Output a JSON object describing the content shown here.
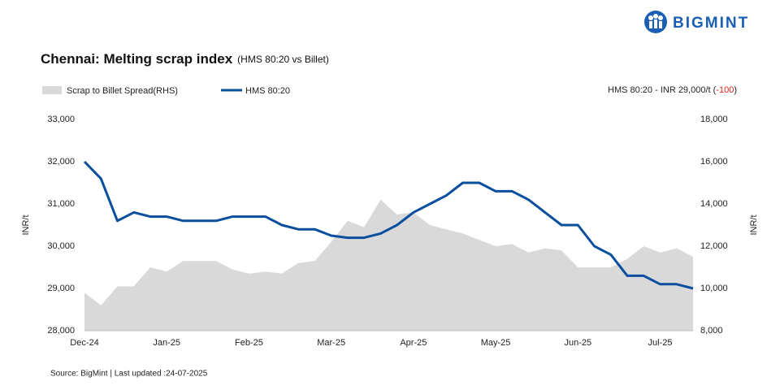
{
  "brand": "BIGMINT",
  "chart_data": {
    "type": "line-area",
    "title": "Chennai: Melting scrap index",
    "subtitle": "(HMS 80:20 vs Billet)",
    "annotation_prefix": "HMS 80:20 - INR 29,000/t (",
    "annotation_change": "-100",
    "annotation_suffix": ")",
    "source": "Source: BigMint | Last updated :24-07-2025",
    "ylabel": "INR/t",
    "y2label": "INR/t",
    "categories": [
      "Dec-24",
      null,
      null,
      null,
      null,
      "Jan-25",
      null,
      null,
      null,
      null,
      "Feb-25",
      null,
      null,
      null,
      null,
      "Mar-25",
      null,
      null,
      null,
      null,
      "Apr-25",
      null,
      null,
      null,
      null,
      "May-25",
      null,
      null,
      null,
      null,
      "Jun-25",
      null,
      null,
      null,
      null,
      "Jul-25",
      null,
      null
    ],
    "series": [
      {
        "name": "Scrap to Billet Spread(RHS)",
        "color": "#d9d9d9",
        "style": "area",
        "axis": "y2",
        "values": [
          9800,
          9200,
          10100,
          10100,
          11000,
          10800,
          11300,
          11300,
          11300,
          10900,
          10700,
          10800,
          10700,
          11200,
          11300,
          12200,
          13200,
          12900,
          14200,
          13500,
          13600,
          13000,
          12800,
          12600,
          12300,
          12000,
          12100,
          11700,
          11900,
          11800,
          11000,
          11000,
          11000,
          11400,
          12000,
          11700,
          11900,
          11500
        ]
      },
      {
        "name": "HMS 80:20",
        "color": "#0a4f9e",
        "style": "line",
        "values": [
          32000,
          31600,
          30600,
          30800,
          30700,
          30700,
          30600,
          30600,
          30600,
          30700,
          30700,
          30700,
          30500,
          30400,
          30400,
          30250,
          30200,
          30200,
          30300,
          30500,
          30800,
          31000,
          31200,
          31500,
          31500,
          31300,
          31300,
          31100,
          30800,
          30500,
          30500,
          30000,
          29800,
          29300,
          29300,
          29100,
          29100,
          29000
        ]
      }
    ],
    "ylim": [
      28000,
      33000
    ],
    "yticks": [
      {
        "value": 28000,
        "label": "28,000"
      },
      {
        "value": 29000,
        "label": "29,000"
      },
      {
        "value": 30000,
        "label": "30,000"
      },
      {
        "value": 31000,
        "label": "31,000"
      },
      {
        "value": 32000,
        "label": "32,000"
      },
      {
        "value": 33000,
        "label": "33,000"
      }
    ],
    "y2lim": [
      8000,
      18000
    ],
    "y2ticks": [
      {
        "value": 8000,
        "label": "8,000"
      },
      {
        "value": 10000,
        "label": "10,000"
      },
      {
        "value": 12000,
        "label": "12,000"
      },
      {
        "value": 14000,
        "label": "14,000"
      },
      {
        "value": 16000,
        "label": "16,000"
      },
      {
        "value": 18000,
        "label": "18,000"
      }
    ],
    "grid": false
  }
}
